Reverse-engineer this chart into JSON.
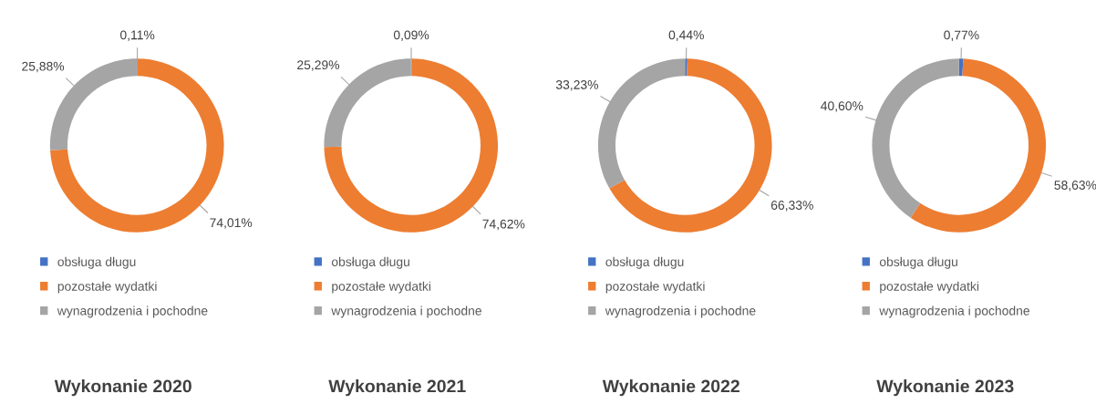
{
  "chart_data": [
    {
      "type": "donut",
      "title": "Wykonanie 2020",
      "categories": [
        "obsługa długu",
        "pozostałe wydatki",
        "wynagrodzenia i pochodne"
      ],
      "values": [
        0.11,
        74.01,
        25.88
      ],
      "value_labels": [
        "0,11%",
        "74,01%",
        "25,88%"
      ],
      "colors": [
        "#4472c4",
        "#ed7d31",
        "#a5a5a5"
      ],
      "legend": "bottom"
    },
    {
      "type": "donut",
      "title": "Wykonanie 2021",
      "categories": [
        "obsługa długu",
        "pozostałe wydatki",
        "wynagrodzenia i pochodne"
      ],
      "values": [
        0.09,
        74.62,
        25.29
      ],
      "value_labels": [
        "0,09%",
        "74,62%",
        "25,29%"
      ],
      "colors": [
        "#4472c4",
        "#ed7d31",
        "#a5a5a5"
      ],
      "legend": "bottom"
    },
    {
      "type": "donut",
      "title": "Wykonanie 2022",
      "categories": [
        "obsługa długu",
        "pozostałe wydatki",
        "wynagrodzenia i pochodne"
      ],
      "values": [
        0.44,
        66.33,
        33.23
      ],
      "value_labels": [
        "0,44%",
        "66,33%",
        "33,23%"
      ],
      "colors": [
        "#4472c4",
        "#ed7d31",
        "#a5a5a5"
      ],
      "legend": "bottom"
    },
    {
      "type": "donut",
      "title": "Wykonanie 2023",
      "categories": [
        "obsługa długu",
        "pozostałe wydatki",
        "wynagrodzenia i pochodne"
      ],
      "values": [
        0.77,
        58.63,
        40.6
      ],
      "value_labels": [
        "0,77%",
        "58,63%",
        "40,60%"
      ],
      "colors": [
        "#4472c4",
        "#ed7d31",
        "#a5a5a5"
      ],
      "legend": "bottom"
    }
  ]
}
